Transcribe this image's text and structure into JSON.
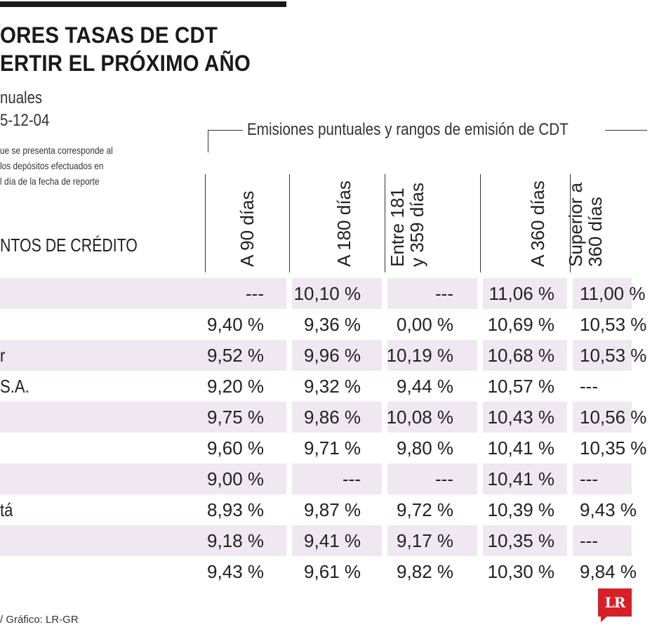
{
  "header": {
    "title_line1": "ORES TASAS DE CDT",
    "title_line2": "ERTIR EL PRÓXIMO AÑO",
    "subtitle_line1": "nuales",
    "subtitle_line2": "5-12-04",
    "note_line1": "ue se presenta corresponde al",
    "note_line2": "los depósitos efectuados en",
    "note_line3": "l día de la fecha de reporte"
  },
  "chart_data": {
    "type": "table",
    "group_header": "Emisiones puntuales y rangos de emisión de CDT",
    "row_header_label": "NTOS DE CRÉDITO",
    "columns": [
      "A 90 días",
      "A 180 días",
      "Entre 181\ny 359 días",
      "A 360 días",
      "Superior a\n360 días"
    ],
    "rows": [
      {
        "entity": "",
        "values": [
          "---",
          "10,10 %",
          "---",
          "11,06 %",
          "11,00 %"
        ]
      },
      {
        "entity": "",
        "values": [
          "9,40 %",
          "9,36 %",
          "0,00 %",
          "10,69 %",
          "10,53 %"
        ]
      },
      {
        "entity": "r",
        "values": [
          "9,52 %",
          "9,96 %",
          "10,19 %",
          "10,68 %",
          "10,53 %"
        ]
      },
      {
        "entity": "S.A.",
        "values": [
          "9,20 %",
          "9,32 %",
          "9,44 %",
          "10,57 %",
          "---"
        ]
      },
      {
        "entity": "",
        "values": [
          "9,75 %",
          "9,86 %",
          "10,08 %",
          "10,43 %",
          "10,56 %"
        ]
      },
      {
        "entity": "",
        "values": [
          "9,60 %",
          "9,71 %",
          "9,80 %",
          "10,41 %",
          "10,35 %"
        ]
      },
      {
        "entity": "",
        "values": [
          "9,00 %",
          "---",
          "---",
          "10,41 %",
          "---"
        ]
      },
      {
        "entity": "tá",
        "values": [
          "8,93 %",
          "9,87 %",
          "9,72 %",
          "10,39 %",
          "9,43 %"
        ]
      },
      {
        "entity": "",
        "values": [
          "9,18 %",
          "9,41 %",
          "9,17 %",
          "10,35 %",
          "---"
        ]
      },
      {
        "entity": "",
        "values": [
          "9,43 %",
          "9,61 %",
          "9,82 %",
          "10,30 %",
          "9,84 %"
        ]
      }
    ],
    "shaded_rows": [
      0,
      2,
      4,
      6,
      8
    ]
  },
  "footer": {
    "source": "/ Gráfico: LR-GR",
    "logo_text": "LR"
  },
  "colors": {
    "row_shade": "#efe8f1",
    "logo_red": "#d61f26",
    "rule": "#1a1a1a"
  }
}
